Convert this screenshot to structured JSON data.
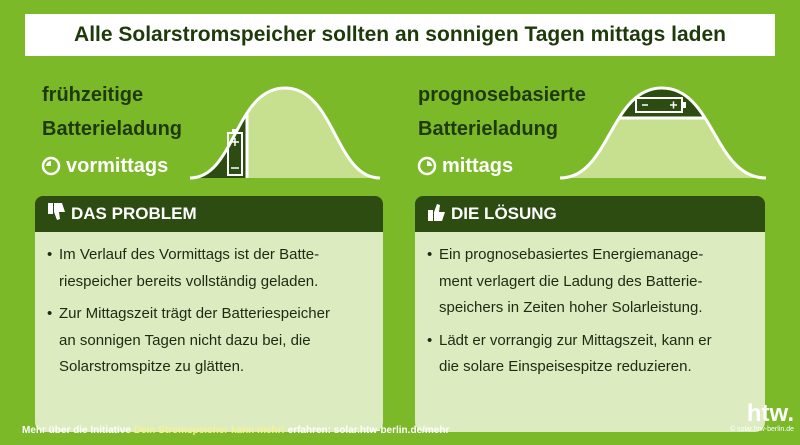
{
  "title": "Alle Solarstromspeicher sollten an sonnigen Tagen mittags laden",
  "left": {
    "heading": [
      "frühzeitige",
      "Batterieladung"
    ],
    "time": "vormittags",
    "box_title": "DAS PROBLEM",
    "bullets": [
      [
        "Im Verlauf des Vormittags ist der Batte-",
        "riespeicher bereits vollständig geladen."
      ],
      [
        "Zur Mittagszeit trägt der Batteriespeicher",
        "an sonnigen Tagen nicht dazu bei, die",
        "Solarstromspitze zu glätten."
      ]
    ]
  },
  "right": {
    "heading": [
      "prognosebasierte",
      "Batterieladung"
    ],
    "time": "mittags",
    "box_title": "DIE LÖSUNG",
    "bullets": [
      [
        "Ein prognosebasiertes Energiemanage-",
        "ment verlagert die Ladung des Batterie-",
        "speichers in Zeiten hoher Solarleistung."
      ],
      [
        "Lädt er vorrangig zur Mittagszeit, kann er",
        "die solare Einspeisespitze reduzieren."
      ]
    ]
  },
  "footer": {
    "before": "Mehr über die Initiative",
    "highlight": "Dein Stromspeicher kann mehr!",
    "after": "erfahren: solar.htw-berlin.de/mehr"
  },
  "logo": {
    "name": "htw.",
    "url": "© solar.htw-berlin.de"
  }
}
